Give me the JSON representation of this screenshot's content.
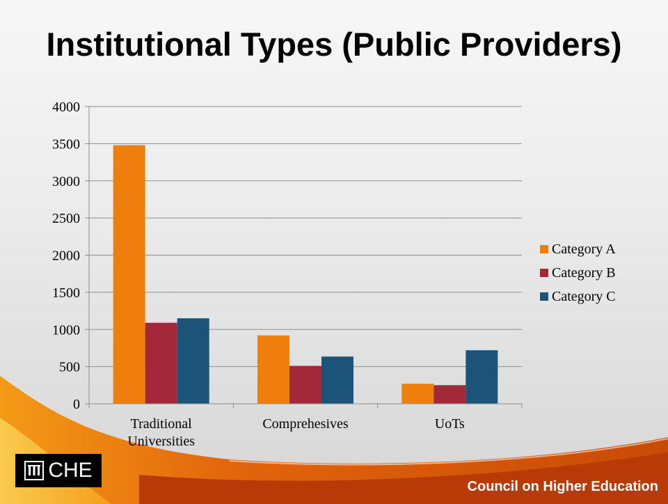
{
  "slide": {
    "title": "Institutional Types (Public Providers)",
    "logo_text": "CHE",
    "footer_text": "Council on Higher Education"
  },
  "colors": {
    "category_a": "#ef7f0c",
    "category_b": "#a2283a",
    "category_c": "#1c5379",
    "swoosh_dark": "#b33a06",
    "swoosh_light": "#f7a21b"
  },
  "chart_data": {
    "type": "bar",
    "title": "",
    "xlabel": "",
    "ylabel": "",
    "categories": [
      "Traditional Universities",
      "Comprehesives",
      "UoTs"
    ],
    "category_lines": [
      [
        "Traditional",
        "Universities"
      ],
      [
        "Comprehesives"
      ],
      [
        "UoTs"
      ]
    ],
    "series": [
      {
        "name": "Category A",
        "values": [
          3480,
          920,
          270
        ]
      },
      {
        "name": "Category B",
        "values": [
          1090,
          510,
          250
        ]
      },
      {
        "name": "Category C",
        "values": [
          1150,
          635,
          720
        ]
      }
    ],
    "ylim": [
      0,
      4000
    ],
    "yticks": [
      0,
      500,
      1000,
      1500,
      2000,
      2500,
      3000,
      3500,
      4000
    ],
    "grid": true,
    "legend_position": "right"
  }
}
